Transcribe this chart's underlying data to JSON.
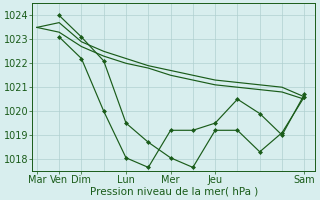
{
  "background_color": "#d8eeee",
  "grid_color": "#b0d0d0",
  "line_color": "#1a5c1a",
  "marker_color": "#1a5c1a",
  "xlabel": "Pression niveau de la mer( hPa )",
  "xlabel_fontsize": 7.5,
  "tick_fontsize": 7,
  "ylim": [
    1017.5,
    1024.5
  ],
  "yticks": [
    1018,
    1019,
    1020,
    1021,
    1022,
    1023,
    1024
  ],
  "major_x_pos": [
    0,
    1,
    2,
    4,
    6,
    8,
    12
  ],
  "major_x_labels": [
    "Mar",
    "Ven",
    "Dim",
    "Lun",
    "Mer",
    "Jeu",
    "Sam"
  ],
  "xlim": [
    -0.2,
    12.5
  ],
  "series": [
    {
      "x": [
        0,
        1,
        2,
        3,
        4,
        5,
        6,
        7,
        8,
        9,
        10,
        11,
        12
      ],
      "y": [
        1023.5,
        1023.7,
        1022.9,
        1022.5,
        1022.2,
        1021.9,
        1021.7,
        1021.5,
        1021.3,
        1021.2,
        1021.1,
        1021.0,
        1020.6
      ],
      "has_markers": false
    },
    {
      "x": [
        0,
        1,
        2,
        3,
        4,
        5,
        6,
        7,
        8,
        9,
        10,
        11,
        12
      ],
      "y": [
        1023.5,
        1023.3,
        1022.7,
        1022.3,
        1022.0,
        1021.8,
        1021.5,
        1021.3,
        1021.1,
        1021.0,
        1020.9,
        1020.8,
        1020.5
      ],
      "has_markers": false
    },
    {
      "x": [
        1,
        2,
        3,
        4,
        5,
        6,
        7,
        8,
        9,
        10,
        11,
        12
      ],
      "y": [
        1024.0,
        1023.1,
        1022.1,
        1019.5,
        1018.7,
        1018.05,
        1017.65,
        1019.2,
        1019.2,
        1018.3,
        1019.1,
        1020.6
      ],
      "has_markers": true
    },
    {
      "x": [
        1,
        2,
        3,
        4,
        5,
        6,
        7,
        8,
        9,
        10,
        11,
        12
      ],
      "y": [
        1023.1,
        1022.2,
        1020.0,
        1018.05,
        1017.65,
        1019.2,
        1019.2,
        1019.5,
        1020.5,
        1019.9,
        1019.0,
        1020.7
      ],
      "has_markers": true
    }
  ]
}
